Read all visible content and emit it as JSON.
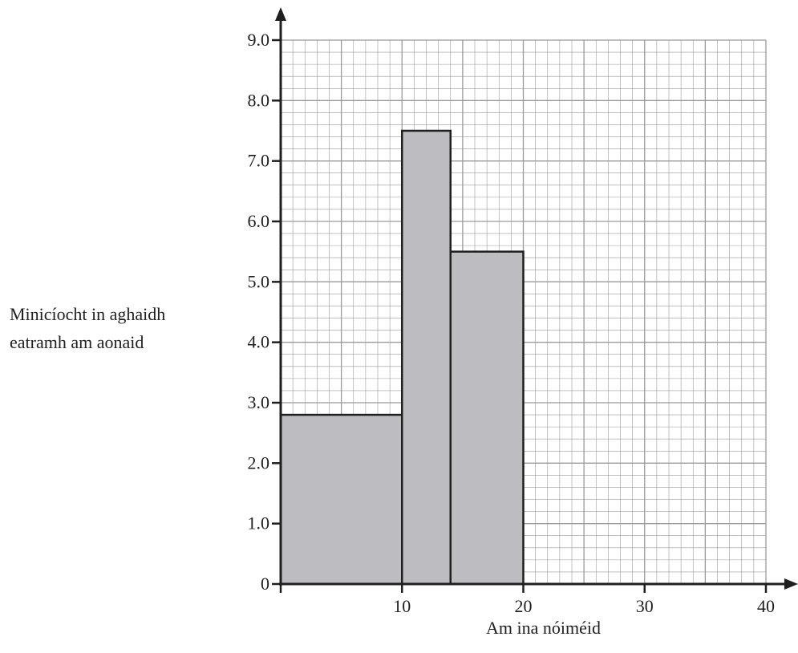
{
  "chart_data": {
    "type": "bar",
    "histogram": true,
    "title": "",
    "xlabel": "Am ina nóiméid",
    "ylabel_lines": [
      "Minicíocht in aghaidh",
      "eatramh am aonaid"
    ],
    "xlim": [
      0,
      40
    ],
    "ylim": [
      0,
      9
    ],
    "x_ticks": [
      {
        "value": 10,
        "label": "10"
      },
      {
        "value": 20,
        "label": "20"
      },
      {
        "value": 30,
        "label": "30"
      },
      {
        "value": 40,
        "label": "40"
      }
    ],
    "y_ticks": [
      {
        "value": 0,
        "label": "0"
      },
      {
        "value": 1,
        "label": "1.0"
      },
      {
        "value": 2,
        "label": "2.0"
      },
      {
        "value": 3,
        "label": "3.0"
      },
      {
        "value": 4,
        "label": "4.0"
      },
      {
        "value": 5,
        "label": "5.0"
      },
      {
        "value": 6,
        "label": "6.0"
      },
      {
        "value": 7,
        "label": "7.0"
      },
      {
        "value": 8,
        "label": "8.0"
      },
      {
        "value": 9,
        "label": "9.0"
      }
    ],
    "bins": [
      {
        "x_start": 0,
        "x_end": 10,
        "value": 2.8
      },
      {
        "x_start": 10,
        "x_end": 14,
        "value": 7.5
      },
      {
        "x_start": 14,
        "x_end": 20,
        "value": 5.5
      }
    ],
    "grid": {
      "major_x_step": 5,
      "major_y_step": 1,
      "minor_x_step": 1,
      "minor_y_step": 0.2
    },
    "bar_color": "#bdbdc1",
    "grid_color": "#9a9a9a",
    "axis_color": "#1f1f1f"
  }
}
